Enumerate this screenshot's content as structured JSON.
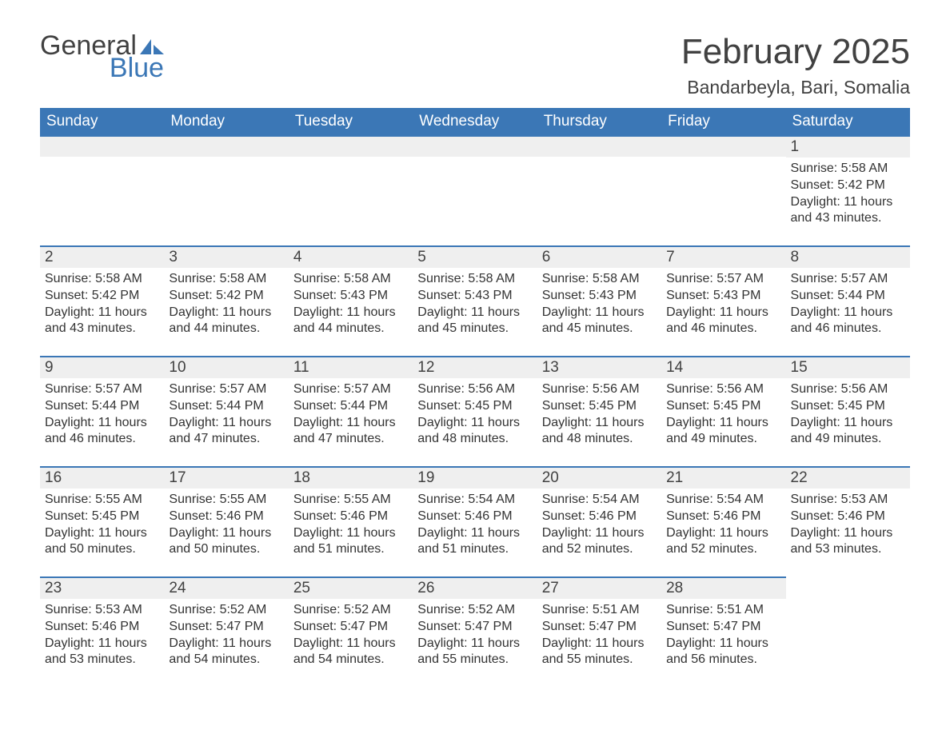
{
  "logo": {
    "word1": "General",
    "word2": "Blue"
  },
  "title": "February 2025",
  "location": "Bandarbeyla, Bari, Somalia",
  "colors": {
    "header_bg": "#3b77b6",
    "header_text": "#ffffff",
    "daynum_bg": "#efefef",
    "daynum_border": "#3b77b6",
    "text": "#333333",
    "title_text": "#414141",
    "logo_gray": "#414141",
    "logo_blue": "#3b77b6",
    "page_bg": "#ffffff"
  },
  "weekdays": [
    "Sunday",
    "Monday",
    "Tuesday",
    "Wednesday",
    "Thursday",
    "Friday",
    "Saturday"
  ],
  "calendar": {
    "type": "table",
    "start_weekday_index": 6,
    "days": [
      {
        "n": 1,
        "sunrise": "5:58 AM",
        "sunset": "5:42 PM",
        "daylight": "11 hours and 43 minutes."
      },
      {
        "n": 2,
        "sunrise": "5:58 AM",
        "sunset": "5:42 PM",
        "daylight": "11 hours and 43 minutes."
      },
      {
        "n": 3,
        "sunrise": "5:58 AM",
        "sunset": "5:42 PM",
        "daylight": "11 hours and 44 minutes."
      },
      {
        "n": 4,
        "sunrise": "5:58 AM",
        "sunset": "5:43 PM",
        "daylight": "11 hours and 44 minutes."
      },
      {
        "n": 5,
        "sunrise": "5:58 AM",
        "sunset": "5:43 PM",
        "daylight": "11 hours and 45 minutes."
      },
      {
        "n": 6,
        "sunrise": "5:58 AM",
        "sunset": "5:43 PM",
        "daylight": "11 hours and 45 minutes."
      },
      {
        "n": 7,
        "sunrise": "5:57 AM",
        "sunset": "5:43 PM",
        "daylight": "11 hours and 46 minutes."
      },
      {
        "n": 8,
        "sunrise": "5:57 AM",
        "sunset": "5:44 PM",
        "daylight": "11 hours and 46 minutes."
      },
      {
        "n": 9,
        "sunrise": "5:57 AM",
        "sunset": "5:44 PM",
        "daylight": "11 hours and 46 minutes."
      },
      {
        "n": 10,
        "sunrise": "5:57 AM",
        "sunset": "5:44 PM",
        "daylight": "11 hours and 47 minutes."
      },
      {
        "n": 11,
        "sunrise": "5:57 AM",
        "sunset": "5:44 PM",
        "daylight": "11 hours and 47 minutes."
      },
      {
        "n": 12,
        "sunrise": "5:56 AM",
        "sunset": "5:45 PM",
        "daylight": "11 hours and 48 minutes."
      },
      {
        "n": 13,
        "sunrise": "5:56 AM",
        "sunset": "5:45 PM",
        "daylight": "11 hours and 48 minutes."
      },
      {
        "n": 14,
        "sunrise": "5:56 AM",
        "sunset": "5:45 PM",
        "daylight": "11 hours and 49 minutes."
      },
      {
        "n": 15,
        "sunrise": "5:56 AM",
        "sunset": "5:45 PM",
        "daylight": "11 hours and 49 minutes."
      },
      {
        "n": 16,
        "sunrise": "5:55 AM",
        "sunset": "5:45 PM",
        "daylight": "11 hours and 50 minutes."
      },
      {
        "n": 17,
        "sunrise": "5:55 AM",
        "sunset": "5:46 PM",
        "daylight": "11 hours and 50 minutes."
      },
      {
        "n": 18,
        "sunrise": "5:55 AM",
        "sunset": "5:46 PM",
        "daylight": "11 hours and 51 minutes."
      },
      {
        "n": 19,
        "sunrise": "5:54 AM",
        "sunset": "5:46 PM",
        "daylight": "11 hours and 51 minutes."
      },
      {
        "n": 20,
        "sunrise": "5:54 AM",
        "sunset": "5:46 PM",
        "daylight": "11 hours and 52 minutes."
      },
      {
        "n": 21,
        "sunrise": "5:54 AM",
        "sunset": "5:46 PM",
        "daylight": "11 hours and 52 minutes."
      },
      {
        "n": 22,
        "sunrise": "5:53 AM",
        "sunset": "5:46 PM",
        "daylight": "11 hours and 53 minutes."
      },
      {
        "n": 23,
        "sunrise": "5:53 AM",
        "sunset": "5:46 PM",
        "daylight": "11 hours and 53 minutes."
      },
      {
        "n": 24,
        "sunrise": "5:52 AM",
        "sunset": "5:47 PM",
        "daylight": "11 hours and 54 minutes."
      },
      {
        "n": 25,
        "sunrise": "5:52 AM",
        "sunset": "5:47 PM",
        "daylight": "11 hours and 54 minutes."
      },
      {
        "n": 26,
        "sunrise": "5:52 AM",
        "sunset": "5:47 PM",
        "daylight": "11 hours and 55 minutes."
      },
      {
        "n": 27,
        "sunrise": "5:51 AM",
        "sunset": "5:47 PM",
        "daylight": "11 hours and 55 minutes."
      },
      {
        "n": 28,
        "sunrise": "5:51 AM",
        "sunset": "5:47 PM",
        "daylight": "11 hours and 56 minutes."
      }
    ]
  },
  "labels": {
    "sunrise": "Sunrise:",
    "sunset": "Sunset:",
    "daylight": "Daylight:"
  }
}
